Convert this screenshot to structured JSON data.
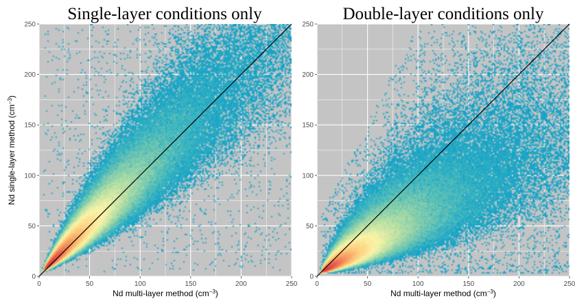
{
  "chart_data": [
    {
      "type": "heatmap",
      "title": "Single-layer conditions only",
      "xlabel": "Nd multi-layer method",
      "ylabel": "Nd single-layer method",
      "unit": "cm",
      "unit_exp": "−3",
      "xlim": [
        0,
        250
      ],
      "ylim": [
        0,
        250
      ],
      "xticks": [
        0,
        50,
        100,
        150,
        200,
        250
      ],
      "yticks": [
        0,
        50,
        100,
        150,
        200,
        250
      ],
      "grid": true,
      "panel_background": "#c4c4c4",
      "colormap": [
        "#0e9bc9",
        "#2fb0c4",
        "#72c7b0",
        "#b9e0a4",
        "#fbf5a8",
        "#fdd383",
        "#f8a061",
        "#ec6452",
        "#d93a3a"
      ],
      "reference_line": {
        "slope": 1,
        "intercept": 0,
        "color": "#000000"
      },
      "density_ridge_slope": 1.0,
      "density_peak": [
        15,
        15
      ],
      "scatter_extent": "dense along 1:1 line, wedge spreading from ~y=0.5x to ~y=1.8x, saturated near top-right"
    },
    {
      "type": "heatmap",
      "title": "Double-layer conditions only",
      "xlabel": "Nd multi-layer method",
      "ylabel": "",
      "unit": "cm",
      "unit_exp": "−3",
      "xlim": [
        0,
        250
      ],
      "ylim": [
        0,
        250
      ],
      "xticks": [
        0,
        50,
        100,
        150,
        200,
        250
      ],
      "yticks": [
        0,
        50,
        100,
        150,
        200,
        250
      ],
      "grid": true,
      "panel_background": "#c4c4c4",
      "colormap": [
        "#0e9bc9",
        "#2fb0c4",
        "#72c7b0",
        "#b9e0a4",
        "#fbf5a8",
        "#fdd383",
        "#f8a061",
        "#ec6452",
        "#d93a3a"
      ],
      "reference_line": {
        "slope": 1,
        "intercept": 0,
        "color": "#000000"
      },
      "density_ridge_slope": 0.6,
      "density_peak": [
        15,
        12
      ],
      "scatter_extent": "mostly below 1:1 line, ridge near y=0.6x, sparse above the line"
    }
  ]
}
